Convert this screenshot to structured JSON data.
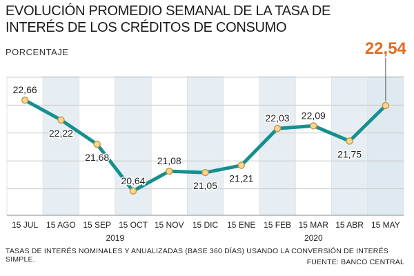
{
  "header": {
    "title": "EVOLUCIÓN PROMEDIO SEMANAL DE LA TASA DE INTERÉS DE LOS CRÉDITOS DE CONSUMO",
    "unit": "PORCENTAJE"
  },
  "footer": {
    "note": "TASAS DE INTERÉS NOMINALES Y ANUALIZADAS (BASE 360 DÍAS) USANDO LA CONVERSIÓN DE INTERÉS SIMPLE.",
    "source": "FUENTE: BANCO CENTRAL"
  },
  "colors": {
    "line": "#178f8f",
    "marker_fill": "#f5d79a",
    "marker_stroke": "#c99a3c",
    "highlight": "#e36b1f",
    "band": "#e6eef3",
    "grid": "#c8c8c8"
  },
  "chart_data": {
    "type": "line",
    "categories": [
      "15 JUL",
      "15 AGO",
      "15 SEP",
      "15 OCT",
      "15 NOV",
      "15 DIC",
      "15 ENE",
      "15 FEB",
      "15 MAR",
      "15 ABR",
      "15 MAY"
    ],
    "values": [
      22.66,
      22.22,
      21.68,
      20.64,
      21.08,
      21.05,
      21.21,
      22.03,
      22.09,
      21.75,
      22.54
    ],
    "value_labels": [
      "22,66",
      "22,22",
      "21,68",
      "20,64",
      "21,08",
      "21,05",
      "21,21",
      "22,03",
      "22,09",
      "21,75",
      "22,54"
    ],
    "highlight_index": 10,
    "year_labels": [
      {
        "label": "2019",
        "category_index": 2.5
      },
      {
        "label": "2020",
        "category_index": 8
      }
    ],
    "ylim": [
      20.1,
      23.2
    ],
    "grid": true
  }
}
